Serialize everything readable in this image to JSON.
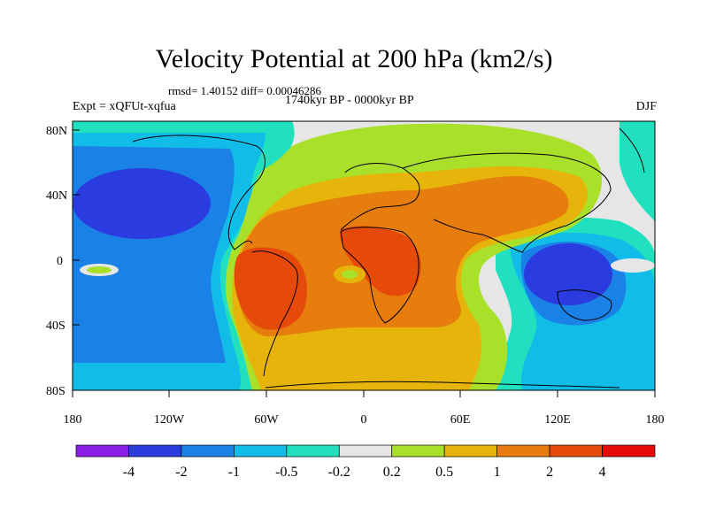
{
  "title": "Velocity Potential at 200 hPa (km2/s)",
  "stats": "rmsd= 1.40152 diff= 0.00046286",
  "period": "1740kyr BP - 0000kyr BP",
  "experiment": "Expt = xQFUt-xqfua",
  "season": "DJF",
  "map": {
    "lat_ticks": [
      "80N",
      "40N",
      "0",
      "40S",
      "80S"
    ],
    "lon_ticks": [
      "180",
      "120W",
      "60W",
      "0",
      "60E",
      "120E",
      "180"
    ]
  },
  "colorbar": {
    "colors": [
      "#8a1ee6",
      "#2a3be0",
      "#1a82e6",
      "#12bce8",
      "#20e0c0",
      "#e6e6e6",
      "#a8e02a",
      "#e6b40a",
      "#e67d0c",
      "#e64a0a",
      "#e60a0a"
    ],
    "labels": [
      "-4",
      "-2",
      "-1",
      "-0.5",
      "-0.2",
      "0.2",
      "0.5",
      "1",
      "2",
      "4"
    ]
  }
}
